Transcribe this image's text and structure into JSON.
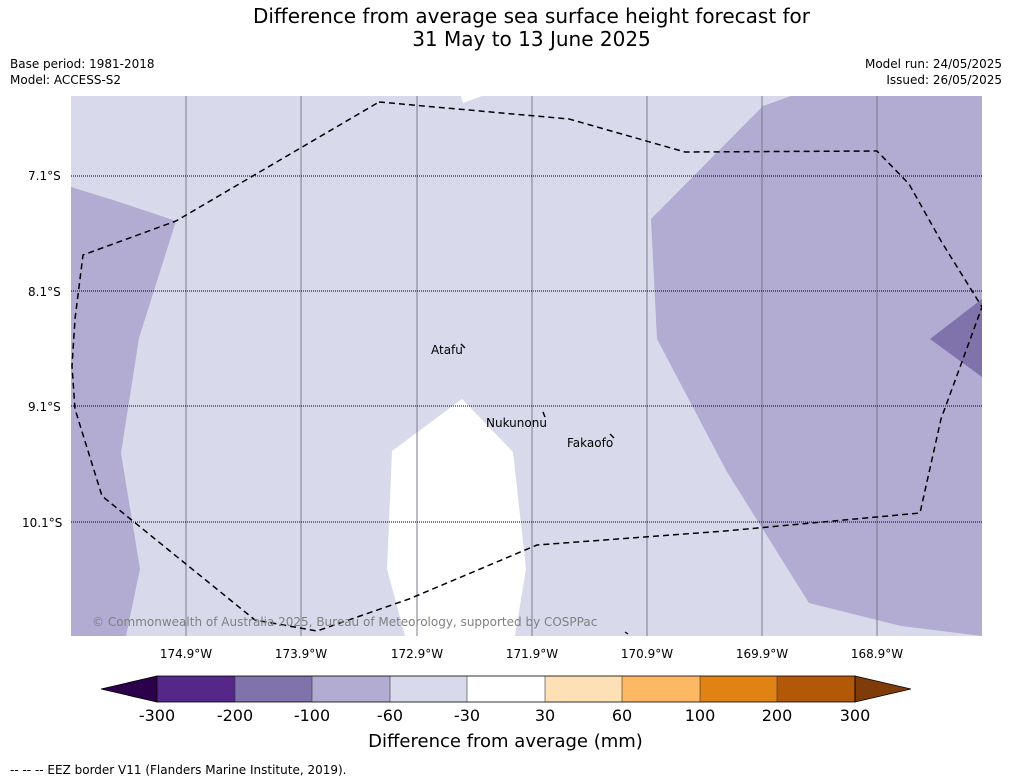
{
  "header": {
    "title_line1": "Difference from average sea surface height forecast for",
    "title_line2": "31 May to 13 June 2025",
    "base_period": "Base period: 1981-2018",
    "model": "Model: ACCESS-S2",
    "model_run": "Model run: 24/05/2025",
    "issued": "Issued: 26/05/2025"
  },
  "map": {
    "latitude_labels": [
      "7.1°S",
      "8.1°S",
      "9.1°S",
      "10.1°S"
    ],
    "longitude_labels": [
      "174.9°W",
      "173.9°W",
      "172.9°W",
      "171.9°W",
      "170.9°W",
      "169.9°W",
      "168.9°W"
    ],
    "places": {
      "atafu": "Atafu",
      "nukunonu": "Nukunonu",
      "fakaofo": "Fakaofo"
    },
    "copyright": "© Commonwealth of Australia 2025, Bureau of Meteorology, supported by COSPPac"
  },
  "colorbar": {
    "ticks": [
      "-300",
      "-200",
      "-100",
      "-60",
      "-30",
      "30",
      "60",
      "100",
      "200",
      "300"
    ],
    "colors": [
      "#2d004b",
      "#542788",
      "#8073ac",
      "#b2abd2",
      "#d8daeb",
      "#ffffff",
      "#fee0b6",
      "#fdb863",
      "#e08214",
      "#b35806",
      "#7f3b08"
    ],
    "label": "Difference from average (mm)"
  },
  "footer": {
    "legend": "--  --  -- EEZ border V11 (Flanders Marine Institute, 2019)."
  }
}
